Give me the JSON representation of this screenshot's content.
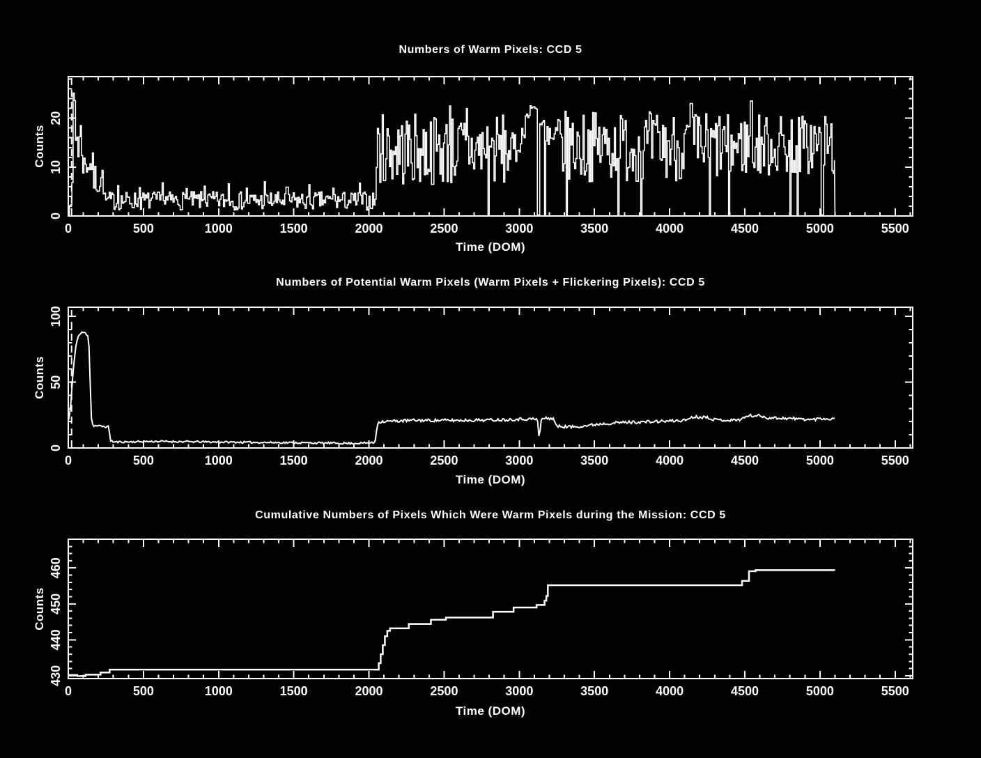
{
  "page": {
    "background": "#000000",
    "foreground": "#ffffff"
  },
  "chart_data": [
    {
      "type": "bar",
      "render": "step-histogram",
      "title": "Numbers of Warm Pixels: CCD 5",
      "xlabel": "Time (DOM)",
      "ylabel": "Counts",
      "xlim": [
        0,
        5617
      ],
      "ylim": [
        0,
        28.5
      ],
      "xtick_major": 500,
      "xtick_minor": 100,
      "xtick_label_max": 5500,
      "ytick_major": 10,
      "ytick_minor": 2,
      "ytick_labels": [
        0,
        10,
        20
      ],
      "grid": false,
      "dashed_line_x": 22,
      "data_start": 8,
      "data_end": 5100,
      "sample_step": 8,
      "seed": 7,
      "envelope_segments": [
        [
          8,
          25,
          2,
          7
        ],
        [
          25,
          48,
          19,
          27.8
        ],
        [
          48,
          62,
          11,
          22
        ],
        [
          62,
          95,
          9,
          22
        ],
        [
          95,
          165,
          8,
          13
        ],
        [
          165,
          235,
          4,
          11
        ],
        [
          235,
          2045,
          1.2,
          5.0
        ],
        [
          2045,
          2930,
          6,
          21
        ],
        [
          2930,
          2990,
          10,
          17
        ],
        [
          2990,
          3012,
          13,
          15.5
        ],
        [
          3012,
          3040,
          16,
          18.5
        ],
        [
          3040,
          3068,
          19.5,
          21.5
        ],
        [
          3068,
          3118,
          21.8,
          22.6
        ],
        [
          3118,
          3128,
          18,
          20
        ],
        [
          3128,
          3168,
          17.5,
          20
        ],
        [
          3168,
          4470,
          7,
          21.5
        ],
        [
          4470,
          5100,
          8,
          21
        ]
      ],
      "spikes": [
        [
          330,
          6.2
        ],
        [
          470,
          5.8
        ],
        [
          622,
          6.8
        ],
        [
          781,
          5.6
        ],
        [
          906,
          6.1
        ],
        [
          1062,
          6.6
        ],
        [
          1183,
          5.7
        ],
        [
          1302,
          7.0
        ],
        [
          1452,
          5.9
        ],
        [
          1601,
          6.4
        ],
        [
          1762,
          5.7
        ],
        [
          1933,
          6.7
        ],
        [
          2536,
          22.5
        ],
        [
          2650,
          22
        ],
        [
          4140,
          23
        ],
        [
          4540,
          23.5
        ]
      ],
      "dropouts": [
        2790,
        3124,
        3170,
        3310,
        3658,
        3806,
        4265,
        4390,
        4797,
        4850,
        5012
      ]
    },
    {
      "type": "line",
      "render": "noisy-line",
      "title": "Numbers of Potential Warm Pixels (Warm Pixels + Flickering Pixels): CCD 5",
      "xlabel": "Time (DOM)",
      "ylabel": "Counts",
      "xlim": [
        0,
        5617
      ],
      "ylim": [
        0,
        107
      ],
      "xtick_major": 500,
      "xtick_minor": 100,
      "xtick_label_max": 5500,
      "ytick_major": 50,
      "ytick_minor": 10,
      "ytick_labels": [
        0,
        50,
        100
      ],
      "grid": false,
      "dashed_line_x": 22,
      "data_end": 5100,
      "sample_step": 8,
      "seed": 11,
      "breakpoints": [
        [
          0,
          20
        ],
        [
          15,
          30
        ],
        [
          30,
          55
        ],
        [
          50,
          78
        ],
        [
          70,
          86
        ],
        [
          100,
          88
        ],
        [
          130,
          86
        ],
        [
          140,
          75
        ],
        [
          148,
          40
        ],
        [
          155,
          20
        ],
        [
          165,
          17
        ],
        [
          270,
          16
        ],
        [
          280,
          6
        ],
        [
          300,
          4.5
        ],
        [
          600,
          5
        ],
        [
          1000,
          4.5
        ],
        [
          1500,
          4
        ],
        [
          1900,
          3.5
        ],
        [
          2040,
          4
        ],
        [
          2055,
          18
        ],
        [
          2070,
          20
        ],
        [
          2300,
          21
        ],
        [
          2600,
          21
        ],
        [
          2900,
          21.5
        ],
        [
          3000,
          22
        ],
        [
          3080,
          22
        ],
        [
          3120,
          22
        ],
        [
          3128,
          14
        ],
        [
          3133,
          1
        ],
        [
          3140,
          18
        ],
        [
          3150,
          22.5
        ],
        [
          3230,
          22.5
        ],
        [
          3245,
          16.5
        ],
        [
          3350,
          16
        ],
        [
          3450,
          17
        ],
        [
          3550,
          18.5
        ],
        [
          3700,
          19.5
        ],
        [
          3900,
          20
        ],
        [
          4100,
          21
        ],
        [
          4150,
          23.5
        ],
        [
          4250,
          23.5
        ],
        [
          4300,
          21.5
        ],
        [
          4420,
          21
        ],
        [
          4480,
          22
        ],
        [
          4520,
          24.5
        ],
        [
          4600,
          24.5
        ],
        [
          4650,
          23
        ],
        [
          4800,
          22.5
        ],
        [
          4950,
          21.5
        ],
        [
          5000,
          22.5
        ],
        [
          5100,
          22
        ]
      ],
      "noise_regions": [
        [
          0,
          150,
          1.2
        ],
        [
          150,
          290,
          0.8
        ],
        [
          290,
          2045,
          0.7
        ],
        [
          2045,
          5100,
          1.1
        ]
      ]
    },
    {
      "type": "line",
      "render": "step-line",
      "title": "Cumulative Numbers of Pixels Which Were Warm Pixels during the Mission: CCD 5",
      "xlabel": "Time (DOM)",
      "ylabel": "Counts",
      "xlim": [
        0,
        5617
      ],
      "ylim": [
        429.2,
        468
      ],
      "xtick_major": 500,
      "xtick_minor": 100,
      "xtick_label_max": 5500,
      "ytick_major": 10,
      "ytick_minor": 2,
      "ytick_labels": [
        430,
        440,
        450,
        460
      ],
      "grid": false,
      "points": [
        [
          0,
          430.2
        ],
        [
          60,
          429.9
        ],
        [
          115,
          430.3
        ],
        [
          215,
          430.9
        ],
        [
          275,
          431.7
        ],
        [
          2055,
          431.7
        ],
        [
          2065,
          433.5
        ],
        [
          2078,
          436
        ],
        [
          2092,
          438.5
        ],
        [
          2106,
          441
        ],
        [
          2122,
          442.5
        ],
        [
          2140,
          443.2
        ],
        [
          2255,
          443.2
        ],
        [
          2265,
          444.4
        ],
        [
          2400,
          444.4
        ],
        [
          2412,
          445.6
        ],
        [
          2500,
          445.6
        ],
        [
          2512,
          446.2
        ],
        [
          2815,
          446.2
        ],
        [
          2825,
          447.8
        ],
        [
          2950,
          447.8
        ],
        [
          2962,
          449
        ],
        [
          3105,
          449
        ],
        [
          3115,
          449.7
        ],
        [
          3158,
          449.7
        ],
        [
          3168,
          450.9
        ],
        [
          3180,
          452.2
        ],
        [
          3190,
          455.2
        ],
        [
          4472,
          455.2
        ],
        [
          4482,
          456.4
        ],
        [
          4518,
          456.4
        ],
        [
          4528,
          459.1
        ],
        [
          4562,
          459.1
        ],
        [
          4572,
          459.4
        ],
        [
          5100,
          459.4
        ]
      ]
    }
  ]
}
